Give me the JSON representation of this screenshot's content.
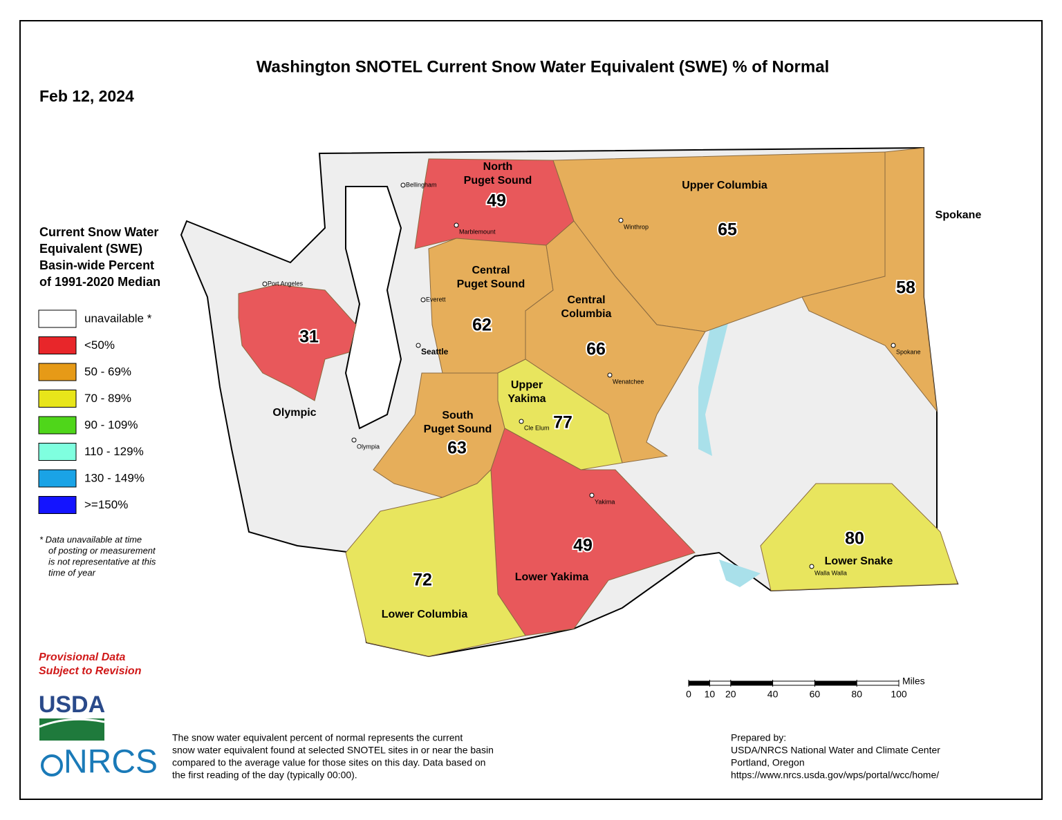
{
  "title": "Washington SNOTEL Current Snow Water Equivalent (SWE) % of Normal",
  "date": "Feb 12, 2024",
  "legend": {
    "title_lines": [
      "Current Snow Water",
      "Equivalent (SWE)",
      "Basin-wide Percent",
      "of 1991-2020 Median"
    ],
    "items": [
      {
        "label": "unavailable *",
        "color": "#ffffff"
      },
      {
        "label": "<50%",
        "color": "#e8262a"
      },
      {
        "label": "50 - 69%",
        "color": "#e69a17"
      },
      {
        "label": "70 - 89%",
        "color": "#e8e51a"
      },
      {
        "label": "90 - 109%",
        "color": "#4fd61a"
      },
      {
        "label": "110 - 129%",
        "color": "#7fffdf"
      },
      {
        "label": "130 - 149%",
        "color": "#1aa3e6"
      },
      {
        "label": ">=150%",
        "color": "#1414ff"
      }
    ],
    "footnote_lines": [
      "*  Data unavailable at time",
      "of posting or measurement",
      "is not representative at this",
      "time of year"
    ]
  },
  "provisional_lines": [
    "Provisional Data",
    "Subject to Revision"
  ],
  "logos": [
    "USDA",
    "NRCS"
  ],
  "description_lines": [
    "The snow water equivalent percent of normal represents the current",
    "snow water equivalent found at selected SNOTEL sites in or near the basin",
    "compared to the average value for those sites on this day. Data based on",
    "the first reading of the day (typically 00:00)."
  ],
  "prepared_lines": [
    "Prepared by:",
    "USDA/NRCS National Water and Climate Center",
    "Portland, Oregon",
    "https://www.nrcs.usda.gov/wps/portal/wcc/home/"
  ],
  "scale": {
    "unit": "Miles",
    "ticks": [
      0,
      10,
      20,
      40,
      60,
      80,
      100
    ]
  },
  "basins": [
    {
      "name_lines": [
        "North",
        "Puget Sound"
      ],
      "value": 49,
      "color": "#e8585b"
    },
    {
      "name_lines": [
        "Upper Columbia"
      ],
      "value": 65,
      "color": "#e6ae5a"
    },
    {
      "name_lines": [
        "Spokane"
      ],
      "value": 58,
      "color": "#e6ae5a"
    },
    {
      "name_lines": [
        "Central",
        "Puget Sound"
      ],
      "value": 62,
      "color": "#e6ae5a"
    },
    {
      "name_lines": [
        "Central",
        "Columbia"
      ],
      "value": 66,
      "color": "#e6ae5a"
    },
    {
      "name_lines": [
        "Olympic"
      ],
      "value": 31,
      "color": "#e8585b"
    },
    {
      "name_lines": [
        "Upper",
        "Yakima"
      ],
      "value": 77,
      "color": "#e8e55e"
    },
    {
      "name_lines": [
        "South",
        "Puget Sound"
      ],
      "value": 63,
      "color": "#e6ae5a"
    },
    {
      "name_lines": [
        "Lower Yakima"
      ],
      "value": 49,
      "color": "#e8585b"
    },
    {
      "name_lines": [
        "Lower Columbia"
      ],
      "value": 72,
      "color": "#e8e55e"
    },
    {
      "name_lines": [
        "Lower Snake"
      ],
      "value": 80,
      "color": "#e8e55e"
    }
  ],
  "cities": [
    "Bellingham",
    "Marblemount",
    "Port Angeles",
    "Everett",
    "Seattle",
    "Olympia",
    "Winthrop",
    "Wenatchee",
    "Cle Elum",
    "Yakima",
    "Spokane",
    "Walla Walla"
  ]
}
